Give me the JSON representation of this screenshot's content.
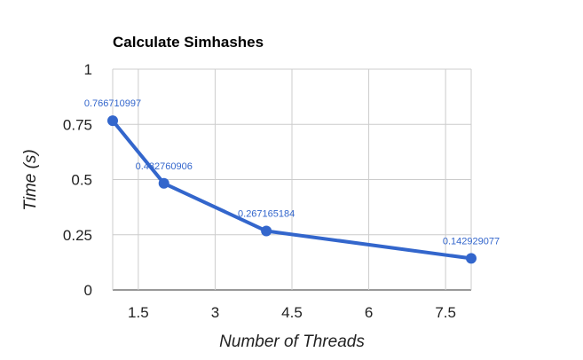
{
  "chart_data": {
    "type": "line",
    "title": "Calculate Simhashes",
    "xlabel": "Number of Threads",
    "ylabel": "Time (s)",
    "xlim": [
      1,
      8
    ],
    "ylim": [
      0,
      1
    ],
    "x_ticks": [
      1.5,
      3,
      4.5,
      6,
      7.5
    ],
    "x_tick_labels": [
      "1.5",
      "3",
      "4.5",
      "6",
      "7.5"
    ],
    "y_ticks": [
      0,
      0.25,
      0.5,
      0.75,
      1
    ],
    "y_tick_labels": [
      "0",
      "0.25",
      "0.5",
      "0.75",
      "1"
    ],
    "grid": true,
    "legend": "none",
    "series": [
      {
        "color": "#3366cc",
        "points": [
          {
            "x": 1,
            "y": 0.766710997,
            "label": "0.766710997"
          },
          {
            "x": 2,
            "y": 0.482760906,
            "label": "0.482760906"
          },
          {
            "x": 4,
            "y": 0.267165184,
            "label": "0.267165184"
          },
          {
            "x": 8,
            "y": 0.142929077,
            "label": "0.142929077"
          }
        ]
      }
    ]
  }
}
